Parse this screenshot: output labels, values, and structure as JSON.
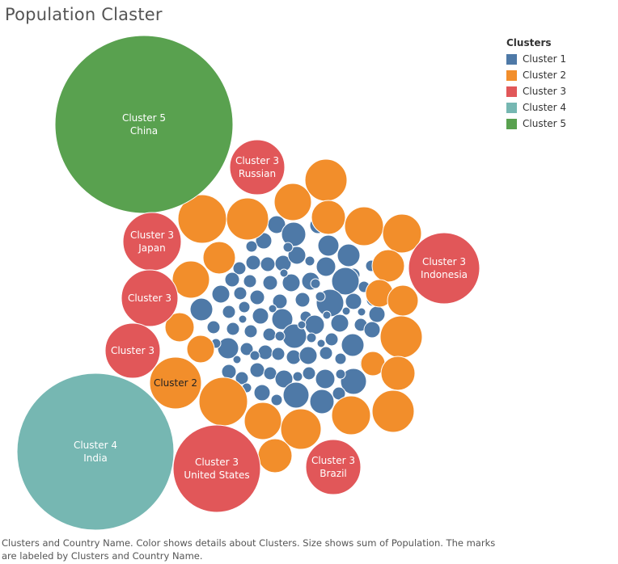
{
  "chart_data": {
    "type": "bubble",
    "title": "Population Claster",
    "legend": {
      "title": "Clusters",
      "placement": "top-right",
      "items": [
        {
          "label": "Cluster 1",
          "color": "#4e79a7"
        },
        {
          "label": "Cluster 2",
          "color": "#f28e2b"
        },
        {
          "label": "Cluster 3",
          "color": "#e15759"
        },
        {
          "label": "Cluster 4",
          "color": "#76b7b2"
        },
        {
          "label": "Cluster 5",
          "color": "#59a14f"
        }
      ]
    },
    "labeled_bubbles": [
      {
        "cluster": "Cluster 5",
        "country": "China",
        "size": 9.6
      },
      {
        "cluster": "Cluster 4",
        "country": "India",
        "size": 9.4
      },
      {
        "cluster": "Cluster 3",
        "country": "United States",
        "size": 2.8
      },
      {
        "cluster": "Cluster 3",
        "country": "Indonesia",
        "size": 1.9
      },
      {
        "cluster": "Cluster 3",
        "country": "Brazil",
        "size": 1.7
      },
      {
        "cluster": "Cluster 3",
        "country": "Russian",
        "size": 1.3
      },
      {
        "cluster": "Cluster 3",
        "country": "Japan",
        "size": 1.2
      },
      {
        "cluster": "Cluster 3",
        "country": "",
        "size": 1.1
      },
      {
        "cluster": "Cluster 3",
        "country": "",
        "size": 1.0
      },
      {
        "cluster": "Cluster 2",
        "country": "",
        "size": 0.9
      }
    ]
  },
  "caption": "Clusters and Country Name.  Color shows details about Clusters.  Size shows sum of Population.  The marks are labeled by Clusters and Country Name."
}
